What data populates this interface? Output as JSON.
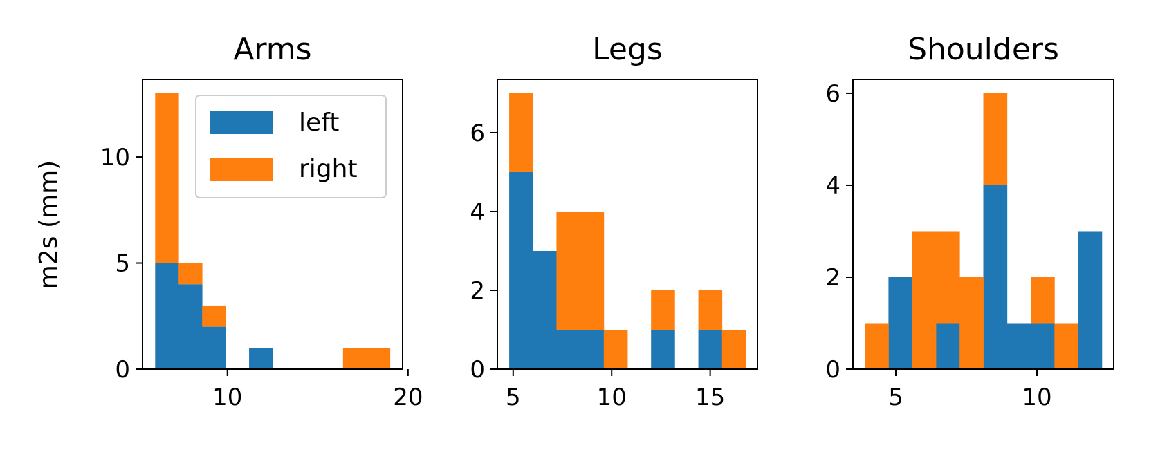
{
  "figure": {
    "ylabel": "m2s (mm)"
  },
  "legend": {
    "entries": [
      {
        "label": "left",
        "color": "#1f77b4"
      },
      {
        "label": "right",
        "color": "#ff7f0e"
      }
    ],
    "placement": "top-right of first subplot"
  },
  "chart_data": [
    {
      "type": "bar",
      "stacked": true,
      "title": "Arms",
      "xlabel": "",
      "ylabel": "m2s (mm)",
      "bin_edges": [
        6.0,
        7.3,
        8.6,
        9.9,
        11.2,
        12.5,
        13.8,
        15.1,
        16.4,
        17.7,
        19.0
      ],
      "series": [
        {
          "name": "left",
          "color": "#1f77b4",
          "values": [
            5,
            4,
            2,
            0,
            1,
            0,
            0,
            0,
            0,
            0
          ]
        },
        {
          "name": "right",
          "color": "#ff7f0e",
          "values": [
            8,
            1,
            1,
            0,
            0,
            0,
            0,
            0,
            1,
            1
          ]
        }
      ],
      "xlim": [
        5.3,
        19.7
      ],
      "ylim": [
        0,
        13.65
      ],
      "xticks": [
        10,
        20
      ],
      "yticks": [
        0,
        5,
        10
      ],
      "grid": false
    },
    {
      "type": "bar",
      "stacked": true,
      "title": "Legs",
      "xlabel": "",
      "ylabel": "",
      "bin_edges": [
        4.8,
        6.0,
        7.2,
        8.4,
        9.6,
        10.8,
        12.0,
        13.2,
        14.4,
        15.6,
        16.8
      ],
      "series": [
        {
          "name": "left",
          "color": "#1f77b4",
          "values": [
            5,
            3,
            1,
            1,
            0,
            0,
            1,
            0,
            1,
            0
          ]
        },
        {
          "name": "right",
          "color": "#ff7f0e",
          "values": [
            2,
            0,
            3,
            3,
            1,
            0,
            1,
            0,
            1,
            1
          ]
        }
      ],
      "xlim": [
        4.2,
        17.4
      ],
      "ylim": [
        0,
        7.35
      ],
      "xticks": [
        5,
        10,
        15
      ],
      "yticks": [
        0,
        2,
        4,
        6
      ],
      "grid": false
    },
    {
      "type": "bar",
      "stacked": true,
      "title": "Shoulders",
      "xlabel": "",
      "ylabel": "",
      "bin_edges": [
        3.9,
        4.74,
        5.58,
        6.42,
        7.26,
        8.1,
        8.94,
        9.78,
        10.62,
        11.46,
        12.3
      ],
      "series": [
        {
          "name": "left",
          "color": "#1f77b4",
          "values": [
            0,
            2,
            0,
            1,
            0,
            4,
            1,
            1,
            0,
            3
          ]
        },
        {
          "name": "right",
          "color": "#ff7f0e",
          "values": [
            1,
            0,
            3,
            2,
            2,
            2,
            0,
            1,
            1,
            0
          ]
        }
      ],
      "xlim": [
        3.48,
        12.72
      ],
      "ylim": [
        0,
        6.3
      ],
      "xticks": [
        5,
        10
      ],
      "yticks": [
        0,
        2,
        4,
        6
      ],
      "grid": false
    }
  ]
}
